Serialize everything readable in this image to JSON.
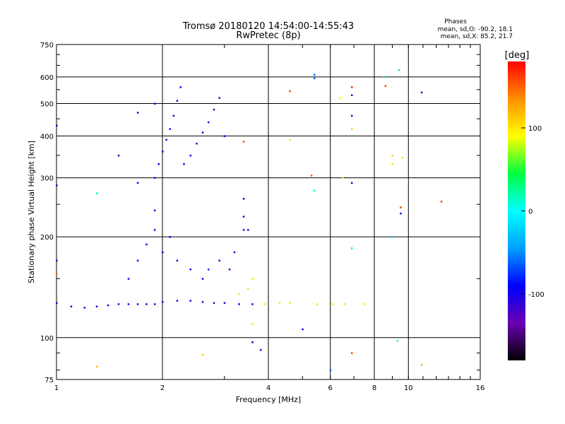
{
  "chart_data": {
    "type": "scatter",
    "title": "Tromsø 20180120 14:54:00-14:55:43",
    "subtitle": "RwPretec (8p)",
    "xlabel": "Frequency [MHz]",
    "ylabel": "Stationary phase Virtual Height [km]",
    "x_scale": "log",
    "y_scale": "log",
    "xlim": [
      1,
      16
    ],
    "ylim": [
      75,
      750
    ],
    "x_ticks": [
      1,
      2,
      4,
      6,
      8,
      10,
      16
    ],
    "y_ticks": [
      75,
      100,
      200,
      300,
      400,
      500,
      600,
      750
    ],
    "x_grid": [
      2,
      4,
      6,
      8,
      10
    ],
    "y_grid": [
      100,
      200,
      300,
      400,
      500,
      600
    ],
    "stats": {
      "heading": "Phases",
      "line_o": "mean, sd,O: -90.2, 18.1",
      "line_x": "mean, sd,X:  85.2, 21.7"
    },
    "colorbar": {
      "label": "[deg]",
      "range": [
        -180,
        180
      ],
      "ticks": [
        100,
        0,
        -100
      ],
      "colors": [
        "#000000",
        "#6a00b0",
        "#0000ff",
        "#00a0ff",
        "#00ffff",
        "#00ff40",
        "#ffff00",
        "#ff9000",
        "#ff0000"
      ]
    },
    "series": [
      {
        "x": 1.0,
        "y": 127,
        "phase": -100
      },
      {
        "x": 1.1,
        "y": 124,
        "phase": -100
      },
      {
        "x": 1.2,
        "y": 123,
        "phase": -100
      },
      {
        "x": 1.3,
        "y": 124,
        "phase": -100
      },
      {
        "x": 1.4,
        "y": 125,
        "phase": -100
      },
      {
        "x": 1.5,
        "y": 126,
        "phase": -100
      },
      {
        "x": 1.6,
        "y": 126,
        "phase": -100
      },
      {
        "x": 1.7,
        "y": 126,
        "phase": -100
      },
      {
        "x": 1.8,
        "y": 126,
        "phase": -100
      },
      {
        "x": 1.9,
        "y": 126,
        "phase": -100
      },
      {
        "x": 2.0,
        "y": 128,
        "phase": -100
      },
      {
        "x": 2.2,
        "y": 129,
        "phase": -100
      },
      {
        "x": 2.4,
        "y": 129,
        "phase": -100
      },
      {
        "x": 2.6,
        "y": 128,
        "phase": -100
      },
      {
        "x": 2.8,
        "y": 127,
        "phase": -100
      },
      {
        "x": 3.0,
        "y": 127,
        "phase": -100
      },
      {
        "x": 3.3,
        "y": 126,
        "phase": -100
      },
      {
        "x": 3.6,
        "y": 126,
        "phase": -100
      },
      {
        "x": 3.9,
        "y": 126,
        "phase": 100
      },
      {
        "x": 4.3,
        "y": 127,
        "phase": 100
      },
      {
        "x": 4.6,
        "y": 127,
        "phase": 100
      },
      {
        "x": 5.5,
        "y": 126,
        "phase": 100
      },
      {
        "x": 6.1,
        "y": 126,
        "phase": 100
      },
      {
        "x": 6.6,
        "y": 126,
        "phase": 100
      },
      {
        "x": 7.5,
        "y": 126,
        "phase": 100
      },
      {
        "x": 3.3,
        "y": 135,
        "phase": 100
      },
      {
        "x": 3.5,
        "y": 140,
        "phase": 100
      },
      {
        "x": 3.6,
        "y": 150,
        "phase": 100
      },
      {
        "x": 1.6,
        "y": 150,
        "phase": -100
      },
      {
        "x": 1.7,
        "y": 170,
        "phase": -100
      },
      {
        "x": 1.8,
        "y": 190,
        "phase": -100
      },
      {
        "x": 1.9,
        "y": 210,
        "phase": -100
      },
      {
        "x": 1.9,
        "y": 240,
        "phase": -100
      },
      {
        "x": 2.0,
        "y": 180,
        "phase": -100
      },
      {
        "x": 2.1,
        "y": 200,
        "phase": -100
      },
      {
        "x": 2.2,
        "y": 170,
        "phase": -100
      },
      {
        "x": 2.4,
        "y": 160,
        "phase": -100
      },
      {
        "x": 2.6,
        "y": 150,
        "phase": -100
      },
      {
        "x": 2.7,
        "y": 160,
        "phase": -80
      },
      {
        "x": 2.9,
        "y": 170,
        "phase": -100
      },
      {
        "x": 3.1,
        "y": 160,
        "phase": -100
      },
      {
        "x": 3.2,
        "y": 180,
        "phase": -100
      },
      {
        "x": 3.4,
        "y": 210,
        "phase": -100
      },
      {
        "x": 1.9,
        "y": 300,
        "phase": -100
      },
      {
        "x": 1.95,
        "y": 330,
        "phase": -100
      },
      {
        "x": 2.0,
        "y": 360,
        "phase": -100
      },
      {
        "x": 2.05,
        "y": 390,
        "phase": -100
      },
      {
        "x": 2.1,
        "y": 420,
        "phase": -100
      },
      {
        "x": 2.15,
        "y": 460,
        "phase": -100
      },
      {
        "x": 2.2,
        "y": 510,
        "phase": -100
      },
      {
        "x": 2.25,
        "y": 560,
        "phase": -100
      },
      {
        "x": 2.3,
        "y": 330,
        "phase": -100
      },
      {
        "x": 2.4,
        "y": 350,
        "phase": -100
      },
      {
        "x": 2.5,
        "y": 380,
        "phase": -100
      },
      {
        "x": 2.6,
        "y": 410,
        "phase": -100
      },
      {
        "x": 2.7,
        "y": 440,
        "phase": -100
      },
      {
        "x": 2.8,
        "y": 480,
        "phase": -100
      },
      {
        "x": 2.9,
        "y": 520,
        "phase": -100
      },
      {
        "x": 3.0,
        "y": 400,
        "phase": -90
      },
      {
        "x": 1.7,
        "y": 470,
        "phase": -100
      },
      {
        "x": 1.9,
        "y": 500,
        "phase": -100
      },
      {
        "x": 1.7,
        "y": 290,
        "phase": -100
      },
      {
        "x": 1.5,
        "y": 350,
        "phase": -100
      },
      {
        "x": 1.0,
        "y": 430,
        "phase": -100
      },
      {
        "x": 1.0,
        "y": 285,
        "phase": -100
      },
      {
        "x": 1.0,
        "y": 170,
        "phase": -100
      },
      {
        "x": 1.0,
        "y": 155,
        "phase": 150
      },
      {
        "x": 1.3,
        "y": 270,
        "phase": 20
      },
      {
        "x": 1.3,
        "y": 82,
        "phase": 120
      },
      {
        "x": 3.4,
        "y": 385,
        "phase": 160
      },
      {
        "x": 3.4,
        "y": 260,
        "phase": -100
      },
      {
        "x": 3.4,
        "y": 230,
        "phase": -100
      },
      {
        "x": 3.5,
        "y": 210,
        "phase": -100
      },
      {
        "x": 3.6,
        "y": 110,
        "phase": 100
      },
      {
        "x": 3.6,
        "y": 97,
        "phase": -100
      },
      {
        "x": 3.8,
        "y": 92,
        "phase": -100
      },
      {
        "x": 4.6,
        "y": 390,
        "phase": 100
      },
      {
        "x": 4.6,
        "y": 545,
        "phase": 160
      },
      {
        "x": 5.3,
        "y": 305,
        "phase": 160
      },
      {
        "x": 5.4,
        "y": 275,
        "phase": 20
      },
      {
        "x": 5.4,
        "y": 610,
        "phase": -60
      },
      {
        "x": 5.4,
        "y": 595,
        "phase": -60
      },
      {
        "x": 6.0,
        "y": 80,
        "phase": -60
      },
      {
        "x": 6.4,
        "y": 520,
        "phase": 100
      },
      {
        "x": 6.5,
        "y": 300,
        "phase": 100
      },
      {
        "x": 6.9,
        "y": 560,
        "phase": 170
      },
      {
        "x": 6.9,
        "y": 530,
        "phase": -100
      },
      {
        "x": 6.9,
        "y": 460,
        "phase": -100
      },
      {
        "x": 6.9,
        "y": 420,
        "phase": 110
      },
      {
        "x": 6.9,
        "y": 290,
        "phase": -100
      },
      {
        "x": 6.9,
        "y": 185,
        "phase": 20
      },
      {
        "x": 6.9,
        "y": 90,
        "phase": 160
      },
      {
        "x": 8.5,
        "y": 600,
        "phase": 20
      },
      {
        "x": 8.6,
        "y": 565,
        "phase": 160
      },
      {
        "x": 9.0,
        "y": 350,
        "phase": 110
      },
      {
        "x": 9.0,
        "y": 330,
        "phase": 100
      },
      {
        "x": 9.0,
        "y": 200,
        "phase": -20
      },
      {
        "x": 9.4,
        "y": 630,
        "phase": 30
      },
      {
        "x": 9.5,
        "y": 245,
        "phase": 160
      },
      {
        "x": 9.5,
        "y": 235,
        "phase": -100
      },
      {
        "x": 9.6,
        "y": 345,
        "phase": 100
      },
      {
        "x": 9.3,
        "y": 98,
        "phase": 20
      },
      {
        "x": 10.9,
        "y": 540,
        "phase": -100
      },
      {
        "x": 10.9,
        "y": 83,
        "phase": 120
      },
      {
        "x": 12.4,
        "y": 255,
        "phase": 160
      },
      {
        "x": 5.0,
        "y": 106,
        "phase": -100
      },
      {
        "x": 2.6,
        "y": 89,
        "phase": 110
      }
    ]
  }
}
